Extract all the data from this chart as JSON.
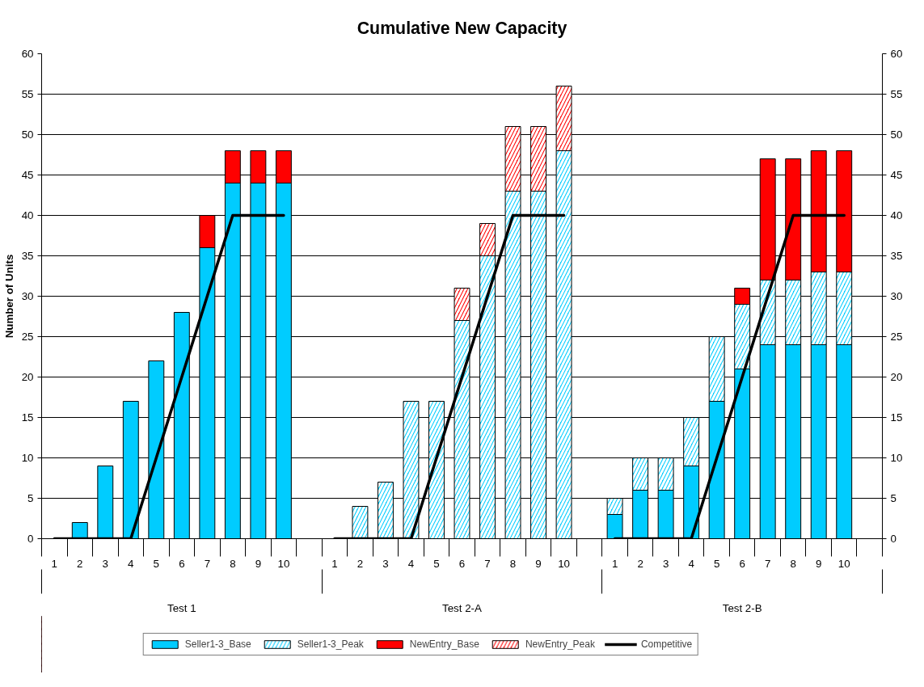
{
  "chart_data": {
    "type": "bar",
    "title": "Cumulative New Capacity",
    "ylabel": "Number of Units",
    "categories": [
      "1",
      "2",
      "3",
      "4",
      "5",
      "6",
      "7",
      "8",
      "9",
      "10",
      null,
      "1",
      "2",
      "3",
      "4",
      "5",
      "6",
      "7",
      "8",
      "9",
      "10",
      null,
      "1",
      "2",
      "3",
      "4",
      "5",
      "6",
      "7",
      "8",
      "9",
      "10",
      null
    ],
    "annotations": [
      "Test 1",
      "Test 2-A",
      "Test 2-B"
    ],
    "stacked": true,
    "grid": "y",
    "legend": "bottom",
    "ylim": [
      0,
      60
    ],
    "yticks": [
      0,
      5,
      10,
      15,
      20,
      25,
      30,
      35,
      40,
      45,
      50,
      55,
      60
    ],
    "y2lim": [
      0,
      60
    ],
    "y2ticks": [
      0,
      5,
      10,
      15,
      20,
      25,
      30,
      35,
      40,
      45,
      50,
      55,
      60
    ],
    "series": [
      {
        "name": "Seller1-3_Base",
        "color": "#00ccff",
        "values": [
          null,
          2,
          9,
          17,
          22,
          28,
          36,
          44,
          44,
          44,
          null,
          null,
          null,
          null,
          null,
          null,
          null,
          null,
          null,
          null,
          null,
          null,
          3,
          6,
          6,
          9,
          17,
          21,
          24,
          24,
          24,
          24,
          null
        ]
      },
      {
        "name": "Seller1-3_Peak",
        "color": "#00ccff",
        "values": [
          null,
          null,
          null,
          null,
          null,
          null,
          null,
          null,
          null,
          null,
          null,
          null,
          4,
          7,
          17,
          17,
          27,
          35,
          43,
          43,
          48,
          null,
          2,
          4,
          4,
          6,
          8,
          8,
          8,
          8,
          9,
          9,
          null
        ]
      },
      {
        "name": "NewEntry_Base",
        "color": "#ff0000",
        "values": [
          null,
          null,
          null,
          null,
          null,
          null,
          4,
          4,
          4,
          4,
          null,
          null,
          null,
          null,
          null,
          null,
          null,
          null,
          null,
          null,
          null,
          null,
          null,
          null,
          null,
          null,
          null,
          2,
          15,
          15,
          15,
          15,
          null
        ]
      },
      {
        "name": "NewEntry_Peak",
        "color": "#ff0000",
        "values": [
          null,
          null,
          null,
          null,
          null,
          null,
          null,
          null,
          null,
          null,
          null,
          null,
          null,
          null,
          null,
          null,
          4,
          4,
          8,
          8,
          8,
          null,
          null,
          null,
          null,
          null,
          null,
          null,
          null,
          null,
          null,
          null,
          null
        ]
      },
      {
        "name": "Competitive",
        "type": "line",
        "color": "#000000",
        "values": [
          0,
          0,
          0,
          0,
          10,
          20,
          30,
          40,
          40,
          40,
          null,
          0,
          0,
          0,
          0,
          10,
          20,
          30,
          40,
          40,
          40,
          null,
          0,
          0,
          0,
          0,
          10,
          20,
          30,
          40,
          40,
          40,
          null
        ]
      }
    ]
  }
}
